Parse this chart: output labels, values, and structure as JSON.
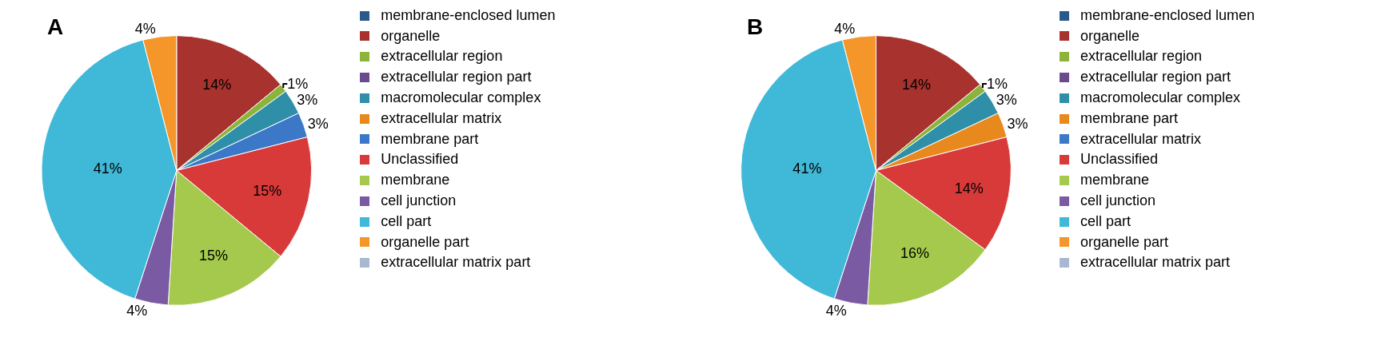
{
  "chart_data": [
    {
      "type": "pie",
      "title": "A",
      "legend": "right",
      "categories": [
        "membrane-enclosed lumen",
        "organelle",
        "extracellular region",
        "extracellular region part",
        "macromolecular complex",
        "extracellular matrix",
        "membrane part",
        "Unclassified",
        "membrane",
        "cell junction",
        "cell part",
        "organelle part",
        "extracellular matrix part"
      ],
      "values": [
        0,
        14,
        1,
        0,
        3,
        0,
        3,
        15,
        15,
        4,
        41,
        4,
        0
      ],
      "value_labels": [
        null,
        "14%",
        "1%",
        null,
        "3%",
        null,
        "3%",
        "15%",
        "15%",
        "4%",
        "41%",
        "4%",
        null
      ],
      "colors": [
        "#2a5a8c",
        "#a8322e",
        "#8cb43c",
        "#6a4c8e",
        "#2f8fa8",
        "#e8891e",
        "#3c78c8",
        "#d83a3a",
        "#a4c94c",
        "#7a5aa2",
        "#40b8d8",
        "#f4962a",
        "#a8b8d0"
      ]
    },
    {
      "type": "pie",
      "title": "B",
      "legend": "right",
      "categories": [
        "membrane-enclosed lumen",
        "organelle",
        "extracellular region",
        "extracellular region part",
        "macromolecular complex",
        "membrane part",
        "extracellular matrix",
        "Unclassified",
        "membrane",
        "cell junction",
        "cell part",
        "organelle part",
        "extracellular matrix part"
      ],
      "values": [
        0,
        14,
        1,
        0,
        3,
        3,
        0,
        14,
        16,
        4,
        41,
        4,
        0
      ],
      "value_labels": [
        null,
        "14%",
        "1%",
        null,
        "3%",
        "3%",
        null,
        "14%",
        "16%",
        "4%",
        "41%",
        "4%",
        null
      ],
      "colors": [
        "#2a5a8c",
        "#a8322e",
        "#8cb43c",
        "#6a4c8e",
        "#2f8fa8",
        "#e8891e",
        "#3c78c8",
        "#d83a3a",
        "#a4c94c",
        "#7a5aa2",
        "#40b8d8",
        "#f4962a",
        "#a8b8d0"
      ]
    }
  ]
}
